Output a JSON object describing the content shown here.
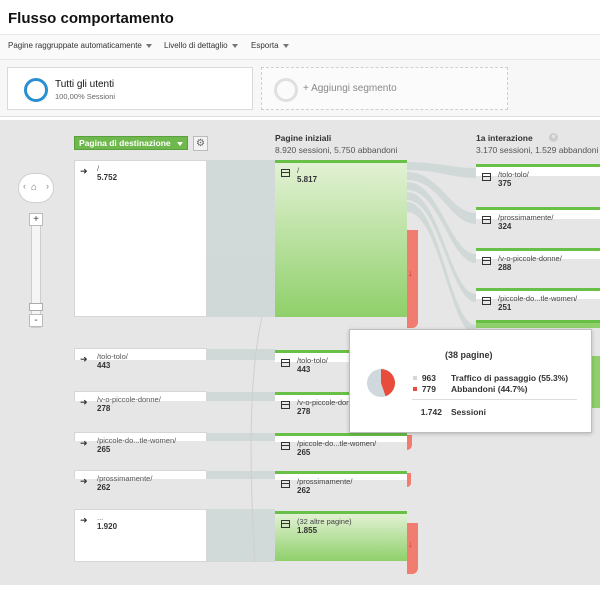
{
  "page": {
    "title": "Flusso comportamento"
  },
  "toolbar": {
    "items": [
      {
        "label": "Pagine raggruppate automaticamente"
      },
      {
        "label": "Livello di dettaglio"
      },
      {
        "label": "Esporta"
      }
    ]
  },
  "segments": {
    "active": {
      "name": "Tutti gli utenti",
      "sub": "100,00% Sessioni"
    },
    "add_label": "+ Aggiungi segmento"
  },
  "dimension": {
    "label": "Pagina di destinazione"
  },
  "columns": {
    "start": {
      "title": "Pagine iniziali",
      "summary": "8.920 sessioni, 5.750 abbandoni"
    },
    "first": {
      "title": "1a interazione",
      "summary": "3.170 sessioni, 1.529 abbandoni"
    }
  },
  "landing_nodes": [
    {
      "name": "/",
      "value": "5.752"
    },
    {
      "name": "/tolo-tolo/",
      "value": "443"
    },
    {
      "name": "/v-o-piccole-donne/",
      "value": "278"
    },
    {
      "name": "/piccole-do...tle-women/",
      "value": "265"
    },
    {
      "name": "/prossimamente/",
      "value": "262"
    },
    {
      "name": "...",
      "value": "1.920"
    }
  ],
  "start_nodes": [
    {
      "name": "/",
      "value": "5.817"
    },
    {
      "name": "/tolo-tolo/",
      "value": "443"
    },
    {
      "name": "/v-o-piccole-donne/",
      "value": "278"
    },
    {
      "name": "/piccole-do...tle-women/",
      "value": "265"
    },
    {
      "name": "/prossimamente/",
      "value": "262"
    },
    {
      "name": "(32 altre pagine)",
      "value": "1.855"
    }
  ],
  "first_nodes": [
    {
      "name": "/tolo-tolo/",
      "value": "375"
    },
    {
      "name": "/prossimamente/",
      "value": "324"
    },
    {
      "name": "/v-o-piccole-donne/",
      "value": "288"
    },
    {
      "name": "/piccole-do...tle-women/",
      "value": "251"
    }
  ],
  "tooltip": {
    "title": "(38 pagine)",
    "rows": [
      {
        "value": "963",
        "label": "Traffico di passaggio (55.3%)",
        "color": "#cfd8dc"
      },
      {
        "value": "779",
        "label": "Abbandoni (44.7%)",
        "color": "#e74c3c"
      }
    ],
    "total_value": "1.742",
    "total_label": "Sessioni",
    "pass_fraction": 0.553
  },
  "icons": {
    "drop": "↓",
    "gear": "⚙",
    "home": "⌂",
    "zoom_in": "+",
    "zoom_out": "-"
  }
}
